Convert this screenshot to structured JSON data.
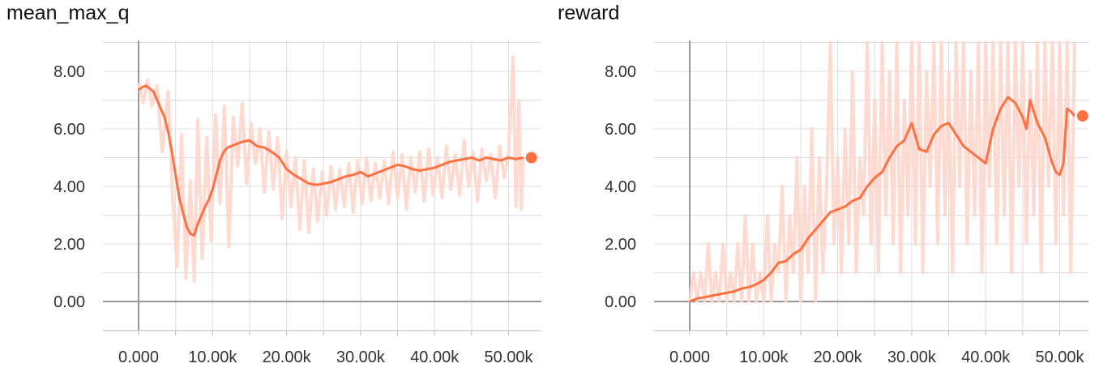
{
  "chart_data": [
    {
      "type": "line",
      "title": "mean_max_q",
      "xlabel": "",
      "ylabel": "",
      "xlim": [
        -10000,
        55000
      ],
      "ylim": [
        -1.0,
        9.0
      ],
      "x_ticks": [
        0,
        10000,
        20000,
        30000,
        40000,
        50000
      ],
      "x_tick_labels": [
        "0.000",
        "10.00k",
        "20.00k",
        "30.00k",
        "40.00k",
        "50.00k"
      ],
      "y_ticks": [
        0,
        2,
        4,
        6,
        8
      ],
      "y_tick_labels": [
        "0.00",
        "2.00",
        "4.00",
        "6.00",
        "8.00"
      ],
      "grid": true,
      "colors": {
        "smoothed": "#ff7043",
        "raw": "#ffd6cc",
        "axis": "#999999",
        "grid": "#dddddd"
      },
      "series": [
        {
          "kind": "raw",
          "x": [
            0,
            600,
            1200,
            1800,
            2500,
            3200,
            4000,
            4600,
            5200,
            5800,
            6400,
            7000,
            7500,
            8000,
            8600,
            9200,
            9800,
            10400,
            11000,
            11600,
            12200,
            12800,
            13400,
            14000,
            14600,
            15200,
            15800,
            16400,
            17000,
            17600,
            18200,
            18800,
            19400,
            20000,
            20600,
            21200,
            21800,
            22400,
            23000,
            23600,
            24200,
            24800,
            25400,
            26000,
            26600,
            27200,
            27800,
            28400,
            29000,
            29600,
            30200,
            30800,
            31400,
            32000,
            32600,
            33200,
            33800,
            34400,
            35000,
            35600,
            36200,
            36800,
            37400,
            38000,
            38600,
            39200,
            39800,
            40400,
            41000,
            41600,
            42200,
            42800,
            43400,
            44000,
            44600,
            45200,
            45800,
            46400,
            47000,
            47600,
            48200,
            48800,
            49400,
            50000,
            50600,
            51000,
            51400,
            51700,
            52000
          ],
          "y": [
            7.6,
            6.9,
            7.7,
            6.8,
            7.5,
            5.2,
            7.3,
            3.6,
            1.2,
            5.8,
            0.8,
            4.2,
            0.7,
            6.3,
            1.5,
            5.7,
            2.1,
            6.5,
            3.4,
            6.8,
            1.9,
            6.4,
            4.7,
            6.9,
            4.1,
            6.2,
            4.8,
            6.0,
            3.8,
            5.9,
            3.9,
            5.7,
            2.9,
            5.2,
            3.3,
            5.0,
            2.5,
            4.9,
            2.4,
            4.6,
            2.8,
            4.5,
            3.0,
            4.7,
            3.2,
            4.6,
            3.3,
            4.8,
            3.1,
            4.9,
            3.4,
            5.0,
            3.5,
            4.8,
            3.6,
            4.9,
            3.4,
            5.2,
            3.6,
            5.1,
            3.2,
            5.0,
            3.8,
            5.2,
            3.5,
            5.3,
            3.7,
            5.0,
            3.6,
            5.4,
            3.9,
            5.1,
            3.7,
            5.6,
            4.0,
            5.2,
            3.5,
            5.3,
            4.2,
            5.1,
            3.6,
            5.4,
            4.3,
            5.2,
            8.5,
            3.3,
            7.0,
            3.2,
            5.0
          ]
        },
        {
          "kind": "smoothed",
          "x": [
            0,
            500,
            1000,
            1500,
            2000,
            2500,
            3000,
            3500,
            4000,
            4500,
            5000,
            5500,
            6000,
            6500,
            7000,
            7500,
            8000,
            8500,
            9000,
            9500,
            10000,
            10500,
            11000,
            11500,
            12000,
            13000,
            14000,
            15000,
            16000,
            17000,
            18000,
            19000,
            20000,
            21000,
            22000,
            23000,
            24000,
            25000,
            26000,
            27000,
            28000,
            29000,
            30000,
            31000,
            32000,
            33000,
            34000,
            35000,
            36000,
            37000,
            38000,
            39000,
            40000,
            41000,
            42000,
            43000,
            44000,
            45000,
            46000,
            47000,
            48000,
            49000,
            50000,
            51000,
            52000
          ],
          "y": [
            7.35,
            7.45,
            7.5,
            7.4,
            7.3,
            7.0,
            6.7,
            6.4,
            5.9,
            5.2,
            4.4,
            3.6,
            3.1,
            2.6,
            2.35,
            2.3,
            2.7,
            3.0,
            3.3,
            3.55,
            3.9,
            4.4,
            4.9,
            5.2,
            5.35,
            5.45,
            5.55,
            5.6,
            5.4,
            5.35,
            5.2,
            5.0,
            4.6,
            4.4,
            4.25,
            4.1,
            4.05,
            4.1,
            4.15,
            4.25,
            4.35,
            4.4,
            4.5,
            4.35,
            4.45,
            4.55,
            4.65,
            4.75,
            4.7,
            4.6,
            4.55,
            4.6,
            4.65,
            4.75,
            4.85,
            4.9,
            4.95,
            5.0,
            4.9,
            5.0,
            4.95,
            4.9,
            5.0,
            4.95,
            5.0
          ]
        }
      ]
    },
    {
      "type": "line",
      "title": "reward",
      "xlabel": "",
      "ylabel": "",
      "xlim": [
        -10000,
        55000
      ],
      "ylim": [
        -1.0,
        9.0
      ],
      "x_ticks": [
        0,
        10000,
        20000,
        30000,
        40000,
        50000
      ],
      "x_tick_labels": [
        "0.000",
        "10.00k",
        "20.00k",
        "30.00k",
        "40.00k",
        "50.00k"
      ],
      "y_ticks": [
        0,
        2,
        4,
        6,
        8
      ],
      "y_tick_labels": [
        "0.00",
        "2.00",
        "4.00",
        "6.00",
        "8.00"
      ],
      "grid": true,
      "colors": {
        "smoothed": "#ff7043",
        "raw": "#ffd6cc",
        "axis": "#999999",
        "grid": "#dddddd"
      },
      "series": [
        {
          "kind": "raw",
          "x": [
            0,
            500,
            1000,
            1500,
            2000,
            2500,
            3000,
            3500,
            4000,
            4500,
            5000,
            5500,
            6000,
            6500,
            7000,
            7500,
            8000,
            8500,
            9000,
            9500,
            10000,
            10500,
            11000,
            11500,
            12000,
            12500,
            13000,
            13500,
            14000,
            14500,
            15000,
            15500,
            16000,
            16500,
            17000,
            17500,
            18000,
            18500,
            19000,
            19500,
            20000,
            20500,
            21000,
            21500,
            22000,
            22500,
            23000,
            23500,
            24000,
            24500,
            25000,
            25500,
            26000,
            26500,
            27000,
            27500,
            28000,
            28500,
            29000,
            29500,
            30000,
            30500,
            31000,
            31500,
            32000,
            32500,
            33000,
            33500,
            34000,
            34500,
            35000,
            35500,
            36000,
            36500,
            37000,
            37500,
            38000,
            38500,
            39000,
            39500,
            40000,
            40500,
            41000,
            41500,
            42000,
            42500,
            43000,
            43500,
            44000,
            44500,
            45000,
            45500,
            46000,
            46500,
            47000,
            47500,
            48000,
            48500,
            49000,
            49500,
            50000,
            50500,
            51000,
            51500,
            52000
          ],
          "y": [
            0,
            1,
            0,
            1,
            0,
            2,
            0,
            1,
            0,
            2,
            0,
            1,
            0,
            2,
            0,
            3,
            0,
            2,
            0,
            1,
            0,
            3,
            0,
            2,
            1,
            4,
            0,
            3,
            1,
            5,
            0,
            4,
            1,
            6,
            0,
            5,
            1,
            4,
            9,
            2,
            5,
            1,
            6,
            2,
            8,
            1,
            5,
            3,
            9,
            2,
            7,
            1,
            9,
            3,
            8,
            2,
            9,
            1,
            7,
            3,
            9,
            2,
            9,
            1,
            8,
            4,
            9,
            2,
            9,
            3,
            8,
            1,
            9,
            4,
            9,
            2,
            8,
            3,
            9,
            1,
            9,
            4,
            9,
            2,
            9,
            3,
            9,
            1,
            9,
            4,
            9,
            2,
            8,
            3,
            9,
            1,
            9,
            4,
            9,
            2,
            9,
            3,
            9,
            1,
            9
          ]
        },
        {
          "kind": "smoothed",
          "x": [
            0,
            1000,
            2000,
            3000,
            4000,
            5000,
            6000,
            7000,
            8000,
            9000,
            10000,
            11000,
            12000,
            13000,
            14000,
            15000,
            16000,
            17000,
            18000,
            19000,
            20000,
            21000,
            22000,
            23000,
            24000,
            25000,
            26000,
            27000,
            28000,
            29000,
            30000,
            31000,
            32000,
            33000,
            34000,
            35000,
            36000,
            37000,
            38000,
            39000,
            40000,
            41000,
            42000,
            43000,
            44000,
            45000,
            45500,
            46000,
            47000,
            48000,
            49000,
            49500,
            50000,
            50500,
            51000,
            51500,
            52000
          ],
          "y": [
            0.0,
            0.1,
            0.15,
            0.2,
            0.25,
            0.3,
            0.35,
            0.45,
            0.5,
            0.6,
            0.75,
            1.0,
            1.35,
            1.4,
            1.65,
            1.8,
            2.2,
            2.5,
            2.8,
            3.1,
            3.2,
            3.3,
            3.5,
            3.6,
            4.0,
            4.3,
            4.5,
            5.0,
            5.4,
            5.6,
            6.2,
            5.3,
            5.2,
            5.8,
            6.1,
            6.2,
            5.8,
            5.4,
            5.2,
            5.0,
            4.8,
            6.0,
            6.7,
            7.1,
            6.9,
            6.4,
            6.0,
            7.0,
            6.2,
            5.7,
            4.8,
            4.5,
            4.4,
            4.8,
            6.7,
            6.6,
            6.45
          ]
        }
      ]
    }
  ]
}
